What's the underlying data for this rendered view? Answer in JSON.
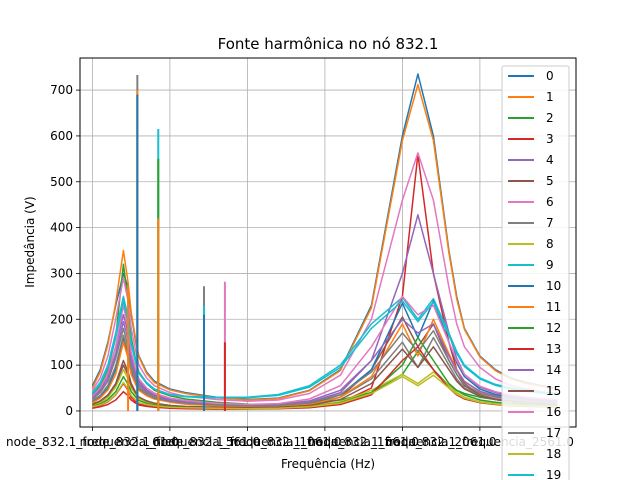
{
  "chart_data": {
    "type": "line",
    "title": "Fonte harmônica no nó 832.1",
    "xlabel": "Frequência (Hz)",
    "ylabel": "Impedância (V)",
    "xlim": [
      -80,
      3120
    ],
    "ylim": [
      -35,
      770
    ],
    "grid": true,
    "legend": {
      "placement": "top-right",
      "clipped": true
    },
    "x_ticks": [
      {
        "value": 0,
        "label": "node_832.1_frequencia_61.0"
      },
      {
        "value": 500,
        "label": "node_832.1_frequencia_561.0"
      },
      {
        "value": 1000,
        "label": "node_832.1_frequencia_1061.0"
      },
      {
        "value": 1500,
        "label": "node_832.1_frequencia_1561.0"
      },
      {
        "value": 2000,
        "label": "node_832.1_frequencia_2061.0"
      },
      {
        "value": 2500,
        "label": "node_832.1_frequencia_2561.0"
      }
    ],
    "y_ticks": [
      0,
      100,
      200,
      300,
      400,
      500,
      600,
      700
    ],
    "x_sample": [
      0,
      50,
      100,
      150,
      200,
      230,
      250,
      280,
      300,
      350,
      400,
      500,
      600,
      800,
      1000,
      1200,
      1400,
      1600,
      1800,
      2000,
      2100,
      2200,
      2300,
      2350,
      2400,
      2500,
      2600,
      2700,
      2800,
      2900,
      3000
    ],
    "series": [
      {
        "name": "0",
        "color": "#1f77b4",
        "values": [
          55,
          90,
          150,
          230,
          300,
          270,
          210,
          150,
          120,
          85,
          65,
          48,
          40,
          30,
          25,
          28,
          45,
          90,
          230,
          600,
          735,
          600,
          350,
          250,
          180,
          120,
          90,
          72,
          62,
          55,
          50
        ]
      },
      {
        "name": "1",
        "color": "#ff7f0e",
        "values": [
          50,
          85,
          145,
          235,
          350,
          280,
          215,
          155,
          118,
          82,
          62,
          46,
          38,
          29,
          24,
          27,
          44,
          88,
          225,
          590,
          712,
          590,
          345,
          245,
          178,
          118,
          88,
          70,
          60,
          54,
          48
        ]
      },
      {
        "name": "2",
        "color": "#2ca02c",
        "values": [
          35,
          55,
          90,
          160,
          320,
          240,
          160,
          110,
          85,
          60,
          45,
          33,
          26,
          19,
          15,
          14,
          17,
          24,
          40,
          80,
          130,
          90,
          55,
          45,
          38,
          30,
          25,
          22,
          20,
          18,
          17
        ]
      },
      {
        "name": "3",
        "color": "#d62728",
        "values": [
          8,
          12,
          20,
          35,
          60,
          45,
          30,
          20,
          15,
          11,
          9,
          7,
          6,
          5,
          5,
          6,
          9,
          18,
          50,
          250,
          560,
          300,
          150,
          90,
          60,
          35,
          25,
          20,
          16,
          14,
          12
        ]
      },
      {
        "name": "4",
        "color": "#9467bd",
        "values": [
          30,
          48,
          80,
          140,
          210,
          170,
          120,
          85,
          65,
          46,
          35,
          25,
          20,
          14,
          11,
          12,
          19,
          40,
          110,
          300,
          428,
          300,
          170,
          115,
          80,
          52,
          40,
          32,
          28,
          24,
          22
        ]
      },
      {
        "name": "5",
        "color": "#8c564b",
        "values": [
          15,
          22,
          35,
          60,
          110,
          85,
          60,
          40,
          30,
          22,
          17,
          12,
          9,
          7,
          6,
          7,
          12,
          30,
          90,
          205,
          140,
          190,
          110,
          80,
          55,
          35,
          26,
          21,
          18,
          16,
          14
        ]
      },
      {
        "name": "6",
        "color": "#e377c2",
        "values": [
          45,
          72,
          120,
          200,
          290,
          240,
          180,
          130,
          100,
          72,
          55,
          40,
          32,
          25,
          21,
          24,
          38,
          78,
          200,
          460,
          563,
          460,
          270,
          190,
          140,
          95,
          70,
          56,
          48,
          42,
          38
        ]
      },
      {
        "name": "7",
        "color": "#7f7f7f",
        "values": [
          25,
          40,
          65,
          115,
          180,
          140,
          100,
          70,
          55,
          40,
          30,
          22,
          18,
          13,
          10,
          11,
          16,
          30,
          70,
          150,
          95,
          160,
          100,
          70,
          50,
          33,
          25,
          20,
          17,
          15,
          13
        ]
      },
      {
        "name": "8",
        "color": "#bcbd22",
        "values": [
          12,
          18,
          30,
          52,
          90,
          70,
          50,
          35,
          27,
          20,
          15,
          11,
          9,
          7,
          6,
          7,
          10,
          20,
          45,
          80,
          60,
          85,
          55,
          40,
          30,
          20,
          16,
          13,
          11,
          10,
          9
        ]
      },
      {
        "name": "9",
        "color": "#17becf",
        "values": [
          40,
          62,
          100,
          170,
          250,
          205,
          150,
          108,
          85,
          62,
          48,
          36,
          32,
          30,
          30,
          36,
          55,
          100,
          190,
          248,
          200,
          245,
          170,
          130,
          100,
          72,
          58,
          50,
          45,
          41,
          38
        ]
      },
      {
        "name": "10",
        "color": "#1f77b4",
        "values": [
          20,
          30,
          50,
          90,
          160,
          120,
          85,
          60,
          47,
          35,
          27,
          20,
          16,
          12,
          10,
          11,
          16,
          35,
          90,
          235,
          160,
          240,
          150,
          105,
          75,
          48,
          36,
          30,
          25,
          22,
          20
        ]
      },
      {
        "name": "11",
        "color": "#ff7f0e",
        "values": [
          18,
          28,
          46,
          80,
          150,
          115,
          80,
          57,
          45,
          33,
          26,
          19,
          15,
          11,
          9,
          10,
          14,
          30,
          75,
          190,
          120,
          200,
          125,
          90,
          65,
          42,
          32,
          26,
          22,
          20,
          18
        ]
      },
      {
        "name": "12",
        "color": "#2ca02c",
        "values": [
          10,
          15,
          25,
          42,
          75,
          58,
          42,
          30,
          23,
          17,
          13,
          10,
          8,
          6,
          5,
          6,
          9,
          18,
          40,
          100,
          160,
          110,
          60,
          45,
          35,
          24,
          19,
          16,
          14,
          12,
          11
        ]
      },
      {
        "name": "13",
        "color": "#d62728",
        "values": [
          6,
          9,
          14,
          24,
          42,
          33,
          24,
          17,
          13,
          10,
          8,
          6,
          5,
          4,
          4,
          5,
          7,
          14,
          35,
          110,
          140,
          90,
          50,
          35,
          26,
          18,
          14,
          11,
          10,
          9,
          8
        ]
      },
      {
        "name": "14",
        "color": "#9467bd",
        "values": [
          28,
          44,
          72,
          125,
          195,
          155,
          110,
          78,
          60,
          43,
          33,
          24,
          19,
          14,
          12,
          14,
          22,
          45,
          110,
          200,
          170,
          190,
          120,
          88,
          64,
          43,
          33,
          27,
          23,
          21,
          19
        ]
      },
      {
        "name": "15",
        "color": "#8c564b",
        "values": [
          14,
          21,
          34,
          58,
          100,
          78,
          56,
          39,
          30,
          22,
          17,
          12,
          10,
          8,
          7,
          8,
          12,
          25,
          60,
          135,
          95,
          140,
          90,
          65,
          48,
          32,
          25,
          20,
          17,
          15,
          14
        ]
      },
      {
        "name": "16",
        "color": "#e377c2",
        "values": [
          32,
          50,
          82,
          140,
          230,
          180,
          128,
          90,
          70,
          50,
          39,
          28,
          23,
          17,
          14,
          16,
          26,
          55,
          140,
          250,
          210,
          230,
          150,
          110,
          80,
          54,
          42,
          35,
          30,
          27,
          25
        ]
      },
      {
        "name": "17",
        "color": "#7f7f7f",
        "values": [
          22,
          34,
          56,
          98,
          165,
          128,
          92,
          65,
          50,
          37,
          28,
          21,
          17,
          13,
          11,
          12,
          18,
          36,
          85,
          170,
          130,
          175,
          110,
          80,
          58,
          39,
          30,
          25,
          21,
          19,
          17
        ]
      },
      {
        "name": "18",
        "color": "#bcbd22",
        "values": [
          9,
          13,
          21,
          36,
          62,
          48,
          34,
          24,
          18,
          14,
          11,
          8,
          7,
          6,
          5,
          6,
          9,
          17,
          38,
          75,
          55,
          78,
          50,
          37,
          28,
          19,
          15,
          12,
          11,
          10,
          9
        ]
      },
      {
        "name": "19",
        "color": "#17becf",
        "values": [
          38,
          58,
          95,
          160,
          240,
          195,
          145,
          104,
          82,
          60,
          47,
          35,
          31,
          29,
          29,
          34,
          52,
          95,
          180,
          240,
          195,
          238,
          165,
          126,
          97,
          70,
          56,
          48,
          43,
          39,
          36
        ]
      }
    ],
    "spikes": [
      {
        "x": 230,
        "top": 275,
        "color": "#ff7f0e"
      },
      {
        "x": 290,
        "top": 733,
        "color": "#7f7f7f"
      },
      {
        "x": 290,
        "top": 700,
        "color": "#ff7f0e"
      },
      {
        "x": 290,
        "top": 690,
        "color": "#1f77b4"
      },
      {
        "x": 425,
        "top": 615,
        "color": "#17becf"
      },
      {
        "x": 425,
        "top": 550,
        "color": "#2ca02c"
      },
      {
        "x": 425,
        "top": 420,
        "color": "#ff7f0e"
      },
      {
        "x": 720,
        "top": 272,
        "color": "#7f7f7f"
      },
      {
        "x": 720,
        "top": 230,
        "color": "#17becf"
      },
      {
        "x": 720,
        "top": 210,
        "color": "#1f77b4"
      },
      {
        "x": 855,
        "top": 282,
        "color": "#e377c2"
      },
      {
        "x": 855,
        "top": 150,
        "color": "#d62728"
      }
    ]
  }
}
